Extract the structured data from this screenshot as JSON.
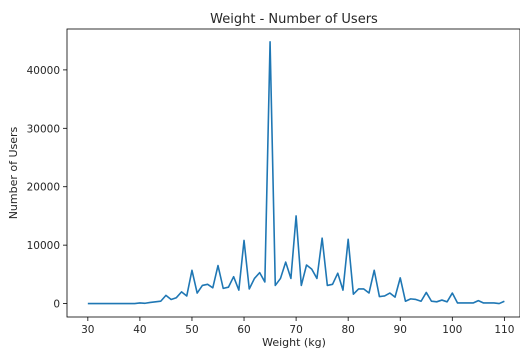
{
  "chart_data": {
    "type": "line",
    "title": "Weight - Number of Users",
    "xlabel": "Weight (kg)",
    "ylabel": "Number of Users",
    "xlim": [
      26,
      113
    ],
    "ylim": [
      -2300,
      47000
    ],
    "xticks": [
      30,
      40,
      50,
      60,
      70,
      80,
      90,
      100,
      110
    ],
    "yticks": [
      0,
      10000,
      20000,
      30000,
      40000
    ],
    "grid": false,
    "color": "#1f77b4",
    "series": [
      {
        "x": [
          30,
          31,
          32,
          33,
          34,
          35,
          36,
          37,
          38,
          39,
          40,
          41,
          42,
          43,
          44,
          45,
          46,
          47,
          48,
          49,
          50,
          51,
          52,
          53,
          54,
          55,
          56,
          57,
          58,
          59,
          60,
          61,
          62,
          63,
          64,
          65,
          66,
          67,
          68,
          69,
          70,
          71,
          72,
          73,
          74,
          75,
          76,
          77,
          78,
          79,
          80,
          81,
          82,
          83,
          84,
          85,
          86,
          87,
          88,
          89,
          90,
          91,
          92,
          93,
          94,
          95,
          96,
          97,
          98,
          99,
          100,
          101,
          102,
          103,
          104,
          105,
          106,
          107,
          108,
          109,
          110
        ],
        "y": [
          0,
          0,
          0,
          0,
          0,
          0,
          0,
          0,
          0,
          0,
          100,
          50,
          200,
          300,
          400,
          1400,
          700,
          1000,
          2000,
          1300,
          5700,
          1800,
          3100,
          3300,
          2700,
          6500,
          2600,
          2800,
          4600,
          2300,
          10800,
          2500,
          4300,
          5300,
          3700,
          44800,
          3100,
          4300,
          7100,
          4300,
          15000,
          3100,
          6600,
          5900,
          4300,
          11200,
          3100,
          3300,
          5200,
          2300,
          11000,
          1600,
          2500,
          2500,
          1800,
          5700,
          1200,
          1300,
          1800,
          1100,
          4400,
          400,
          800,
          700,
          400,
          1900,
          400,
          300,
          600,
          300,
          1800,
          100,
          100,
          100,
          100,
          500,
          100,
          100,
          100,
          0,
          400
        ]
      }
    ]
  }
}
